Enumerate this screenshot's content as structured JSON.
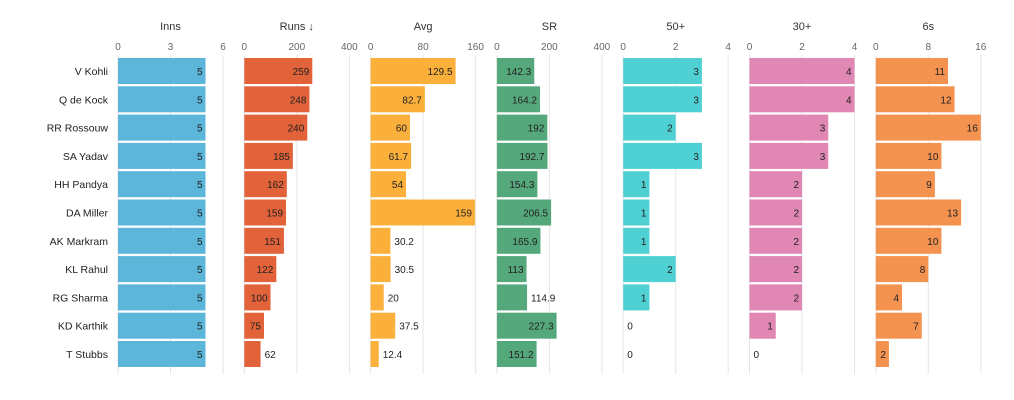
{
  "chart_data": {
    "type": "bar",
    "orientation": "horizontal",
    "grid": true,
    "players": [
      "V Kohli",
      "Q de Kock",
      "RR Rossouw",
      "SA Yadav",
      "HH Pandya",
      "DA Miller",
      "AK Markram",
      "KL Rahul",
      "RG Sharma",
      "KD Karthik",
      "T Stubbs"
    ],
    "panels": [
      {
        "title": "Inns",
        "color": "#5bb6da",
        "xlim": [
          0,
          6
        ],
        "ticks": [
          0,
          3,
          6
        ],
        "values": [
          5,
          5,
          5,
          5,
          5,
          5,
          5,
          5,
          5,
          5,
          5
        ],
        "labels": [
          "5",
          "5",
          "5",
          "5",
          "5",
          "5",
          "5",
          "5",
          "5",
          "5",
          "5"
        ]
      },
      {
        "title": "Runs ↓",
        "color": "#e2623a",
        "xlim": [
          0,
          400
        ],
        "ticks": [
          0,
          200,
          400
        ],
        "values": [
          259,
          248,
          240,
          185,
          162,
          159,
          151,
          122,
          100,
          75,
          62
        ],
        "labels": [
          "259",
          "248",
          "240",
          "185",
          "162",
          "159",
          "151",
          "122",
          "100",
          "75",
          "62"
        ]
      },
      {
        "title": "Avg",
        "color": "#fbb03b",
        "xlim": [
          0,
          160
        ],
        "ticks": [
          0,
          80,
          160
        ],
        "values": [
          129.5,
          82.7,
          60,
          61.7,
          54,
          159,
          30.2,
          30.5,
          20,
          37.5,
          12.4
        ],
        "labels": [
          "129.5",
          "82.7",
          "60",
          "61.7",
          "54",
          "159",
          "30.2",
          "30.5",
          "20",
          "37.5",
          "12.4"
        ]
      },
      {
        "title": "SR",
        "color": "#55a87b",
        "xlim": [
          0,
          400
        ],
        "ticks": [
          0,
          200,
          400
        ],
        "values": [
          142.3,
          164.2,
          192,
          192.7,
          154.3,
          206.5,
          165.9,
          113,
          114.9,
          227.3,
          151.2
        ],
        "labels": [
          "142.3",
          "164.2",
          "192",
          "192.7",
          "154.3",
          "206.5",
          "165.9",
          "113",
          "114.9",
          "227.3",
          "151.2"
        ]
      },
      {
        "title": "50+",
        "color": "#4fd1d4",
        "xlim": [
          0,
          4
        ],
        "ticks": [
          0,
          2,
          4
        ],
        "values": [
          3,
          3,
          2,
          3,
          1,
          1,
          1,
          2,
          1,
          0,
          0
        ],
        "labels": [
          "3",
          "3",
          "2",
          "3",
          "1",
          "1",
          "1",
          "2",
          "1",
          "0",
          "0"
        ]
      },
      {
        "title": "30+",
        "color": "#e187b4",
        "xlim": [
          0,
          4
        ],
        "ticks": [
          0,
          2,
          4
        ],
        "values": [
          4,
          4,
          3,
          3,
          2,
          2,
          2,
          2,
          2,
          1,
          0
        ],
        "labels": [
          "4",
          "4",
          "3",
          "3",
          "2",
          "2",
          "2",
          "2",
          "2",
          "1",
          "0"
        ]
      },
      {
        "title": "6s",
        "color": "#f4924f",
        "xlim": [
          0,
          16
        ],
        "ticks": [
          0,
          8,
          16
        ],
        "values": [
          11,
          12,
          16,
          10,
          9,
          13,
          10,
          8,
          4,
          7,
          2
        ],
        "labels": [
          "11",
          "12",
          "16",
          "10",
          "9",
          "13",
          "10",
          "8",
          "4",
          "7",
          "2"
        ]
      }
    ]
  }
}
